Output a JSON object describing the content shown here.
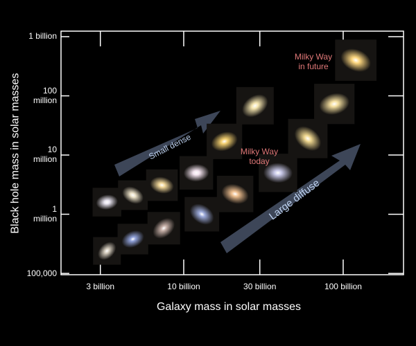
{
  "chart_data": {
    "type": "scatter",
    "x_label": "Galaxy mass in solar masses",
    "y_label": "Black hole mass in solar masses",
    "log_x": true,
    "log_y": true,
    "xlim": [
      1700000000,
      239000000000
    ],
    "ylim": [
      95000,
      1240000000
    ],
    "xticks": [
      {
        "value": 3000000000,
        "label": "3 billion"
      },
      {
        "value": 10000000000,
        "label": "10 billion"
      },
      {
        "value": 30000000000,
        "label": "30 billion"
      },
      {
        "value": 100000000000,
        "label": "100 billion"
      }
    ],
    "yticks": [
      {
        "value": 100000,
        "label": "100,000"
      },
      {
        "value": 1000000,
        "label": "1\nmillion"
      },
      {
        "value": 10000000,
        "label": "10\nmillion"
      },
      {
        "value": 100000000,
        "label": "100\nmillion"
      },
      {
        "value": 1000000000,
        "label": "1 billion"
      }
    ],
    "x": [
      3300000000,
      3300000000,
      4800000000,
      4800000000,
      7300000000,
      7500000000,
      12000000000,
      13000000000,
      18000000000,
      21000000000,
      28000000000,
      39000000000,
      60000000000,
      88000000000,
      120000000000
    ],
    "values": [
      240000,
      1600000,
      2100000,
      380000,
      3100000,
      580000,
      5000000,
      1000000,
      17000000,
      2200000,
      68000000,
      5000000,
      19000000,
      73000000,
      400000000
    ],
    "point_colors": [
      "#d8cfc0",
      "#e8e4f0",
      "#ece2c8",
      "#8fa0d8",
      "#f2d89a",
      "#c7b0a8",
      "#f4e4f0",
      "#9aa8d8",
      "#f4d070",
      "#f0c090",
      "#f6e6b0",
      "#c8c8e8",
      "#f0d890",
      "#f6e0a0",
      "#ffd880"
    ],
    "annotations": [
      "Small  dense",
      "Large  diffuse",
      "Milky Way\ntoday",
      "Milky Way\nin future"
    ]
  }
}
